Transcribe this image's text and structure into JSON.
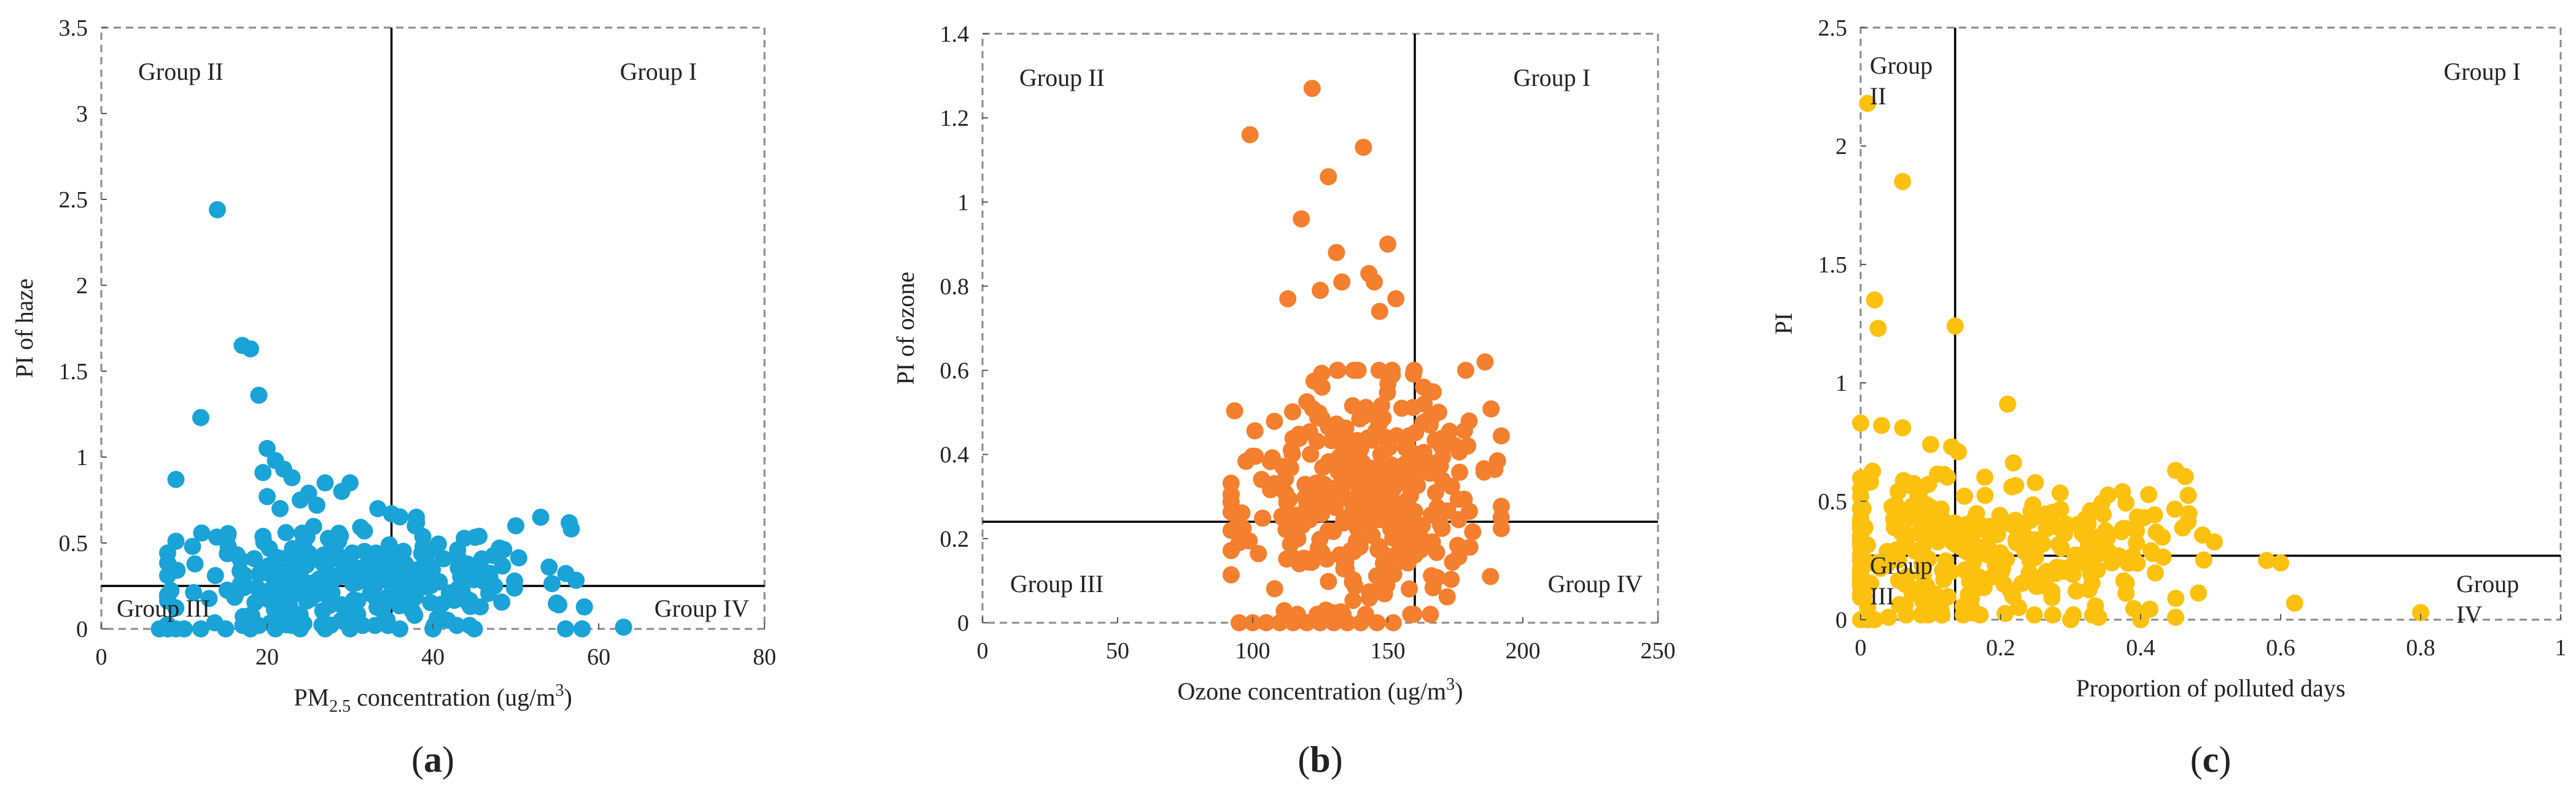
{
  "chart_data": [
    {
      "type": "scatter",
      "panel_label": "(a)",
      "panel_letter": "a",
      "color": "#1AA3D6",
      "xlabel": "PM2.5 concentration (ug/m3)",
      "xlabel_parts": {
        "pre": "PM",
        "sub": "2.5",
        "mid": " concentration (ug/m",
        "sup": "3",
        "post": ")"
      },
      "ylabel": "PI of haze",
      "xlim": [
        0,
        80
      ],
      "ylim": [
        0,
        3.5
      ],
      "xticks": [
        0,
        20,
        40,
        60,
        80
      ],
      "yticks": [
        0,
        0.5,
        1,
        1.5,
        2,
        2.5,
        3,
        3.5
      ],
      "ytick_labels": [
        "0",
        "0.5",
        "1",
        "1.5",
        "2",
        "2.5",
        "3",
        "3.5"
      ],
      "divider_x": 35,
      "divider_y": 0.25,
      "quadrant_labels": {
        "I": "Group I",
        "II": "Group II",
        "III": "Group III",
        "IV": "Group IV"
      },
      "cluster": {
        "n": 300,
        "x_mean": 31,
        "x_sd": 11,
        "x_min": 8,
        "x_max": 62,
        "y_mean": 0.3,
        "y_sd": 0.16,
        "y_max": 0.7,
        "seed": 11
      },
      "outliers": [
        [
          14,
          2.44
        ],
        [
          17,
          1.65
        ],
        [
          18,
          1.63
        ],
        [
          12,
          1.23
        ],
        [
          19,
          1.36
        ],
        [
          9,
          0.87
        ],
        [
          20,
          1.05
        ],
        [
          21,
          0.98
        ],
        [
          22,
          0.93
        ],
        [
          19.5,
          0.91
        ],
        [
          23,
          0.88
        ],
        [
          27,
          0.85
        ],
        [
          30,
          0.85
        ],
        [
          29,
          0.8
        ],
        [
          25,
          0.79
        ],
        [
          20,
          0.77
        ],
        [
          24,
          0.75
        ],
        [
          26,
          0.72
        ],
        [
          35,
          0.67
        ],
        [
          38,
          0.65
        ],
        [
          50,
          0.6
        ],
        [
          53,
          0.65
        ],
        [
          9,
          0.51
        ],
        [
          11,
          0.48
        ],
        [
          63,
          0.01
        ],
        [
          7,
          0
        ],
        [
          8,
          0
        ],
        [
          9,
          0
        ],
        [
          10,
          0
        ],
        [
          12,
          0
        ],
        [
          15,
          0
        ],
        [
          18,
          0
        ],
        [
          21,
          0
        ],
        [
          24,
          0
        ],
        [
          27,
          0
        ],
        [
          30,
          0
        ],
        [
          36,
          0
        ],
        [
          40,
          0
        ],
        [
          45,
          0
        ],
        [
          56,
          0
        ],
        [
          58,
          0
        ]
      ]
    },
    {
      "type": "scatter",
      "panel_label": "(b)",
      "panel_letter": "b",
      "color": "#F47F2E",
      "xlabel": "Ozone concentration (ug/m3)",
      "xlabel_parts": {
        "pre": "Ozone concentration (ug/m",
        "sub": "",
        "mid": "",
        "sup": "3",
        "post": ")"
      },
      "ylabel": "PI of ozone",
      "xlim": [
        0,
        250
      ],
      "ylim": [
        0,
        1.4
      ],
      "xticks": [
        0,
        50,
        100,
        150,
        200,
        250
      ],
      "yticks": [
        0,
        0.2,
        0.4,
        0.6,
        0.8,
        1,
        1.2,
        1.4
      ],
      "ytick_labels": [
        "0",
        "0.2",
        "0.4",
        "0.6",
        "0.8",
        "1",
        "1.2",
        "1.4"
      ],
      "divider_x": 160,
      "divider_y": 0.24,
      "quadrant_labels": {
        "I": "Group I",
        "II": "Group II",
        "III": "Group III",
        "IV": "Group IV"
      },
      "cluster": {
        "n": 380,
        "x_mean": 140,
        "x_sd": 22,
        "x_min": 92,
        "x_max": 192,
        "y_mean": 0.3,
        "y_sd": 0.14,
        "y_max": 0.6,
        "seed": 23
      },
      "outliers": [
        [
          99,
          1.16
        ],
        [
          122,
          1.27
        ],
        [
          128,
          1.06
        ],
        [
          141,
          1.13
        ],
        [
          118,
          0.96
        ],
        [
          131,
          0.88
        ],
        [
          150,
          0.9
        ],
        [
          143,
          0.83
        ],
        [
          133,
          0.81
        ],
        [
          145,
          0.81
        ],
        [
          125,
          0.79
        ],
        [
          113,
          0.77
        ],
        [
          153,
          0.77
        ],
        [
          147,
          0.74
        ],
        [
          186,
          0.62
        ],
        [
          188,
          0.11
        ],
        [
          95,
          0
        ],
        [
          100,
          0
        ],
        [
          105,
          0
        ],
        [
          110,
          0
        ],
        [
          115,
          0
        ],
        [
          120,
          0
        ],
        [
          125,
          0
        ],
        [
          130,
          0
        ],
        [
          135,
          0
        ],
        [
          140,
          0
        ],
        [
          146,
          0
        ],
        [
          152,
          0
        ]
      ]
    },
    {
      "type": "scatter",
      "panel_label": "(c)",
      "panel_letter": "c",
      "color": "#FBC10E",
      "xlabel": "Proportion of polluted days",
      "xlabel_parts": {
        "pre": "Proportion of polluted days",
        "sub": "",
        "mid": "",
        "sup": "",
        "post": ""
      },
      "ylabel": "PI",
      "xlim": [
        0,
        1
      ],
      "ylim": [
        0,
        2.5
      ],
      "xticks": [
        0,
        0.2,
        0.4,
        0.6,
        0.8,
        1
      ],
      "xtick_labels": [
        "0",
        "0.2",
        "0.4",
        "0.6",
        "0.8",
        "1"
      ],
      "yticks": [
        0,
        0.5,
        1,
        1.5,
        2,
        2.5
      ],
      "ytick_labels": [
        "0",
        "0.5",
        "1",
        "1.5",
        "2",
        "2.5"
      ],
      "divider_x": 0.135,
      "divider_y": 0.27,
      "quadrant_labels": {
        "I": "Group I",
        "II_line1": "Group",
        "II_line2": "II",
        "III_line1": "Group",
        "III_line2": "III",
        "IV_line1": "Group",
        "IV_line2": "IV"
      },
      "cluster": {
        "n": 320,
        "x_mean": 0.17,
        "x_sd": 0.14,
        "x_min": 0,
        "x_max": 0.56,
        "y_mean": 0.32,
        "y_sd": 0.16,
        "y_max": 0.72,
        "seed": 37
      },
      "outliers": [
        [
          0.01,
          2.18
        ],
        [
          0.06,
          1.85
        ],
        [
          0.02,
          1.35
        ],
        [
          0.025,
          1.23
        ],
        [
          0.135,
          1.24
        ],
        [
          0.21,
          0.91
        ],
        [
          0.0,
          0.83
        ],
        [
          0.03,
          0.82
        ],
        [
          0.06,
          0.81
        ],
        [
          0.1,
          0.74
        ],
        [
          0.13,
          0.73
        ],
        [
          0.45,
          0.63
        ],
        [
          0.62,
          0.07
        ],
        [
          0.8,
          0.03
        ],
        [
          0.58,
          0.25
        ],
        [
          0.6,
          0.24
        ],
        [
          0.0,
          0.0
        ],
        [
          0.01,
          0.0
        ],
        [
          0.02,
          0.0
        ],
        [
          0.04,
          0.01
        ],
        [
          0.3,
          0.0
        ],
        [
          0.34,
          0.01
        ],
        [
          0.4,
          0.0
        ],
        [
          0.45,
          0.01
        ],
        [
          0.01,
          0.05
        ],
        [
          0.005,
          0.1
        ]
      ]
    }
  ]
}
